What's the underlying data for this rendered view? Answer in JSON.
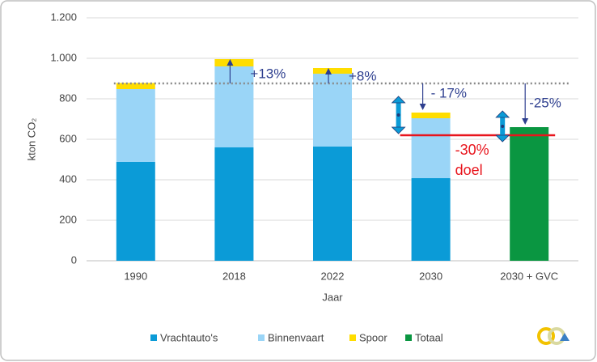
{
  "chart_data": {
    "type": "stacked-bar",
    "y_label": "kton CO₂",
    "x_label": "Jaar",
    "categories": [
      "1990",
      "2018",
      "2022",
      "2030",
      "2030 + GVC"
    ],
    "series": [
      {
        "name": "Vrachtauto's",
        "color": "#0b9bd7",
        "values": [
          488,
          560,
          564,
          408,
          null
        ]
      },
      {
        "name": "Binnenvaart",
        "color": "#9ad5f7",
        "values": [
          360,
          400,
          360,
          296,
          null
        ]
      },
      {
        "name": "Spoor",
        "color": "#ffdd00",
        "values": [
          30,
          36,
          28,
          28,
          null
        ]
      },
      {
        "name": "Totaal",
        "color": "#0a9641",
        "values": [
          null,
          null,
          null,
          null,
          660
        ]
      }
    ],
    "ylim": [
      0,
      1200
    ],
    "yticks": [
      0,
      200,
      400,
      600,
      800,
      {
        "value": 1000,
        "label": "1.000"
      },
      {
        "value": 1200,
        "label": "1.200"
      }
    ],
    "grid": true,
    "reference_value": 876,
    "target_value": 620,
    "annotations": [
      "+13%",
      "+8%",
      "- 17%",
      "-25%",
      "-30%",
      "doel"
    ]
  }
}
